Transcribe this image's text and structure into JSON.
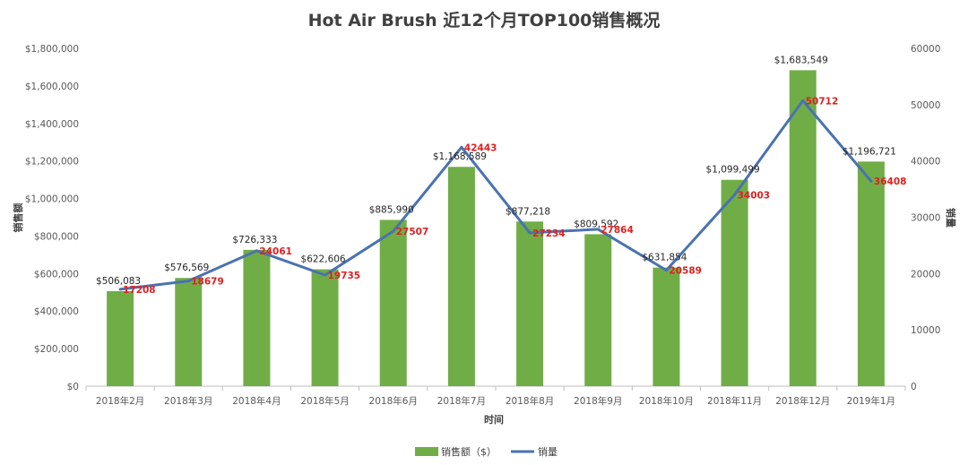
{
  "chart_data": {
    "type": "bar",
    "title": "Hot Air Brush 近12个月TOP100销售概况",
    "xlabel": "时间",
    "ylabel_left": "销售额",
    "ylabel_right": "销量",
    "categories": [
      "2018年2月",
      "2018年3月",
      "2018年4月",
      "2018年5月",
      "2018年6月",
      "2018年7月",
      "2018年8月",
      "2018年9月",
      "2018年10月",
      "2018年11月",
      "2018年12月",
      "2019年1月"
    ],
    "series": [
      {
        "name": "销售额（$）",
        "type": "bar",
        "axis": "left",
        "color": "#70ad47",
        "values": [
          506083,
          576569,
          726333,
          622606,
          885990,
          1168589,
          877218,
          809592,
          631854,
          1099499,
          1683549,
          1196721
        ],
        "labels": [
          "$506,083",
          "$576,569",
          "$726,333",
          "$622,606",
          "$885,990",
          "$1,168,589",
          "$877,218",
          "$809,592",
          "$631,854",
          "$1,099,499",
          "$1,683,549",
          "$1,196,721"
        ]
      },
      {
        "name": "销量",
        "type": "line",
        "axis": "right",
        "color": "#4a72b0",
        "values": [
          17208,
          18679,
          24061,
          19735,
          27507,
          42443,
          27234,
          27864,
          20589,
          34003,
          50712,
          36408
        ],
        "labels": [
          "17208",
          "18679",
          "24061",
          "19735",
          "27507",
          "42443",
          "27234",
          "27864",
          "20589",
          "34003",
          "50712",
          "36408"
        ]
      }
    ],
    "y_left": {
      "min": 0,
      "max": 1800000,
      "ticks": [
        "$0",
        "$200,000",
        "$400,000",
        "$600,000",
        "$800,000",
        "$1,000,000",
        "$1,200,000",
        "$1,400,000",
        "$1,600,000",
        "$1,800,000"
      ]
    },
    "y_right": {
      "min": 0,
      "max": 60000,
      "ticks": [
        "0",
        "10000",
        "20000",
        "30000",
        "40000",
        "50000",
        "60000"
      ]
    },
    "grid": false,
    "legend_position": "bottom"
  }
}
